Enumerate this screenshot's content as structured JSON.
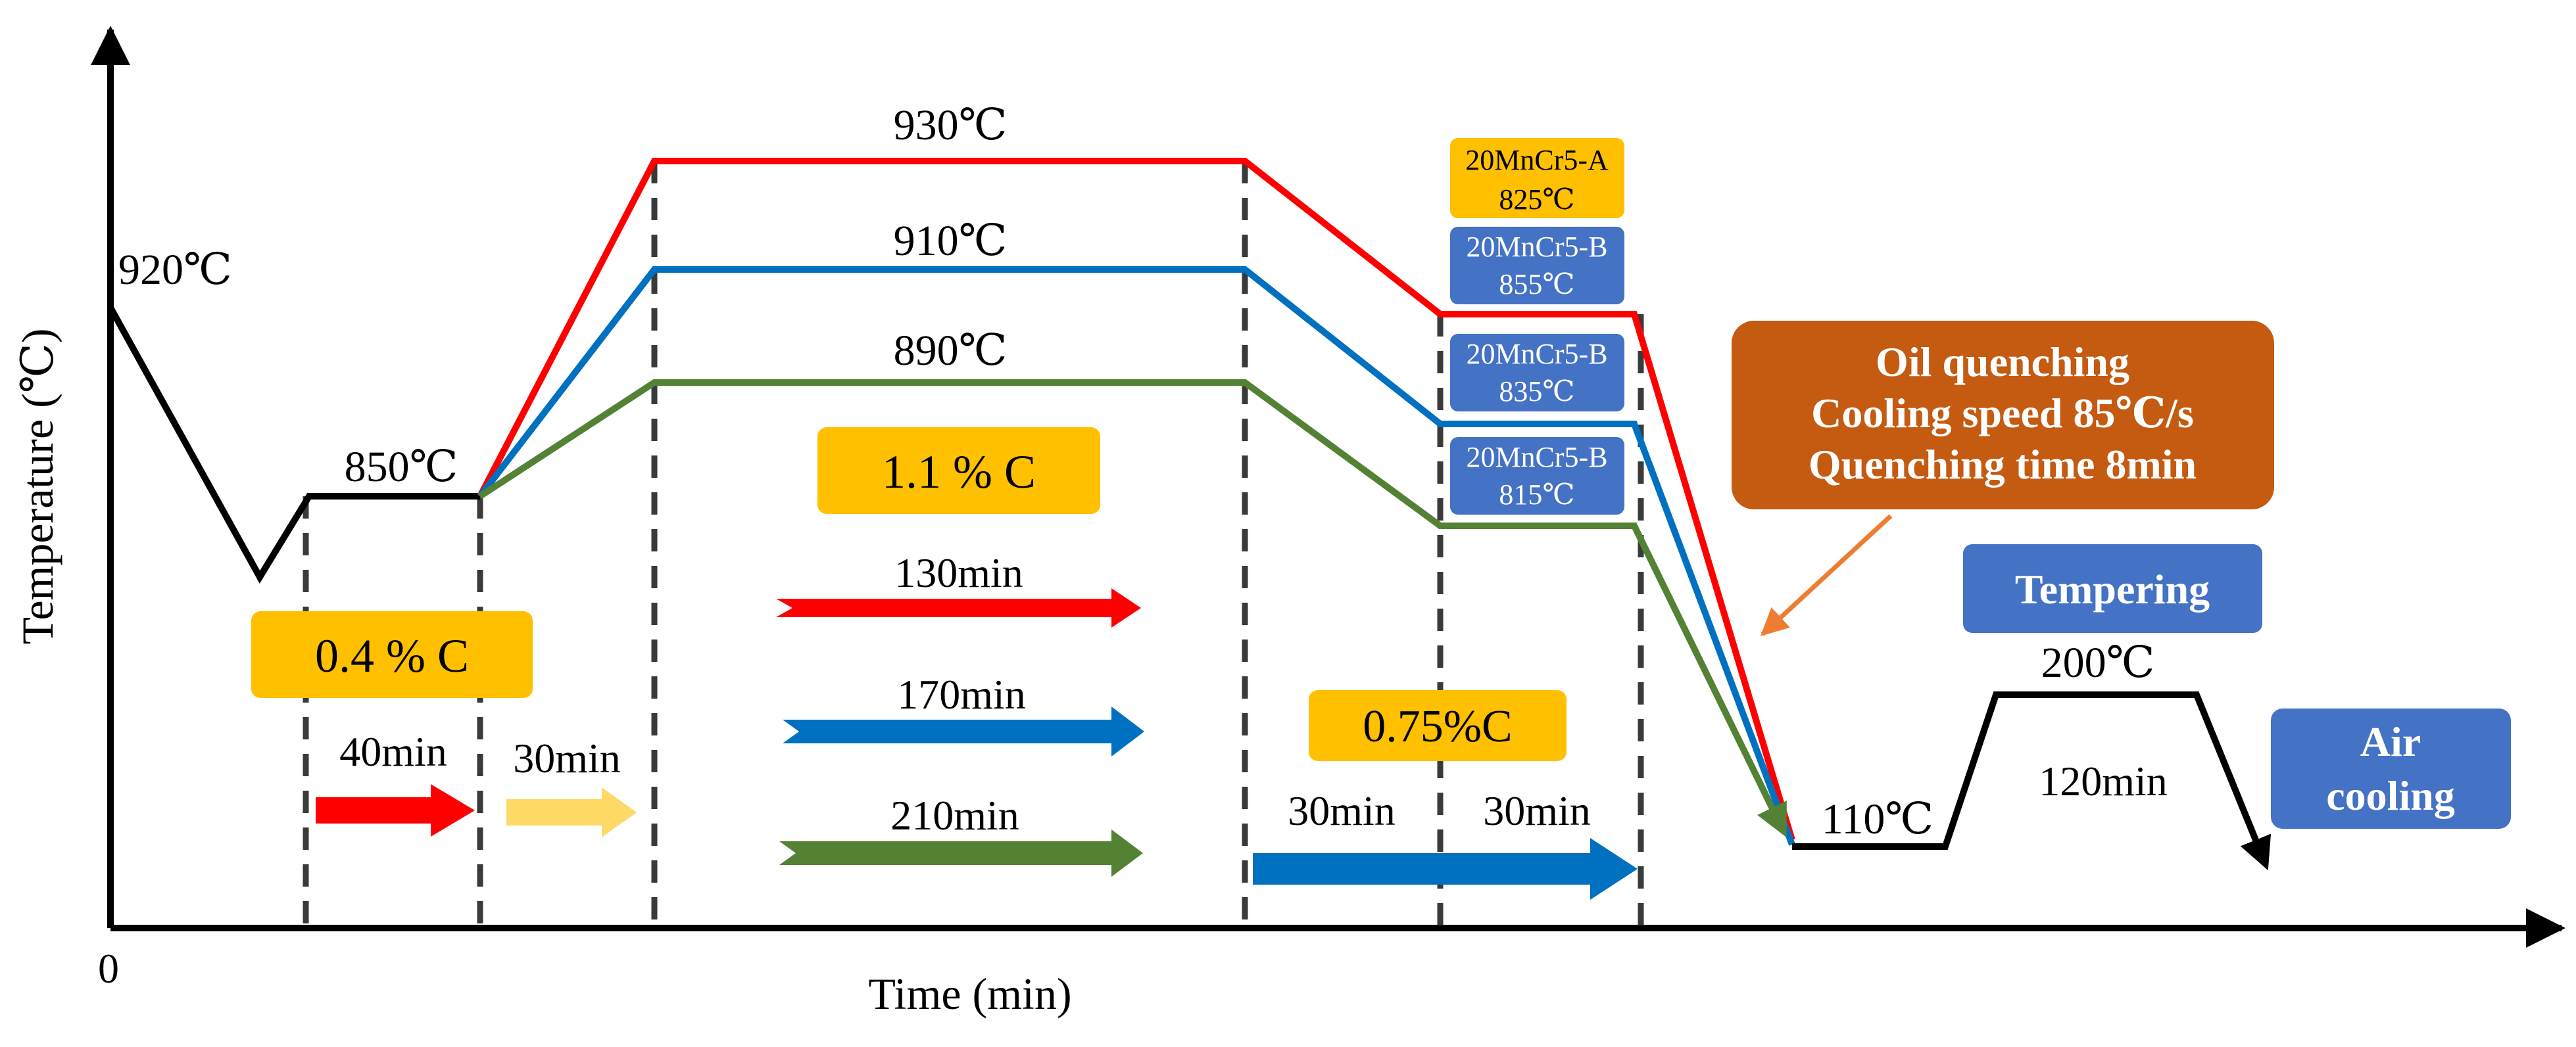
{
  "axis": {
    "y_label": "Temperature (℃)",
    "x_label": "Time (min)",
    "origin": "0"
  },
  "temps": {
    "t920": "920℃",
    "t850": "850℃",
    "t930": "930℃",
    "t910": "910℃",
    "t890": "890℃",
    "t110": "110℃",
    "t200": "200℃"
  },
  "carbon": {
    "c04": "0.4 % C",
    "c11": "1.1 % C",
    "c075": "0.75%C"
  },
  "durations": {
    "d40": "40min",
    "d30a": "30min",
    "d130": "130min",
    "d170": "170min",
    "d210": "210min",
    "d30b": "30min",
    "d30c": "30min",
    "d120": "120min"
  },
  "grades": [
    {
      "name": "20MnCr5-A",
      "temp": "825℃",
      "color": "#FFC000"
    },
    {
      "name": "20MnCr5-B",
      "temp": "855℃",
      "color": "#4472C4"
    },
    {
      "name": "20MnCr5-B",
      "temp": "835℃",
      "color": "#4472C4"
    },
    {
      "name": "20MnCr5-B",
      "temp": "815℃",
      "color": "#4472C4"
    }
  ],
  "quench": {
    "line1": "Oil quenching",
    "line2": "Cooling speed 85℃/s",
    "line3": "Quenching time 8min"
  },
  "tempering": "Tempering",
  "air_cooling": {
    "line1": "Air",
    "line2": "cooling"
  },
  "colors": {
    "red": "#FF0000",
    "blue": "#0070C0",
    "green": "#548235",
    "yellow": "#FFC000",
    "light_yellow": "#FFD966",
    "box_blue": "#4472C4",
    "orange_box": "#C55A11",
    "orange_arrow": "#ED7D31"
  }
}
